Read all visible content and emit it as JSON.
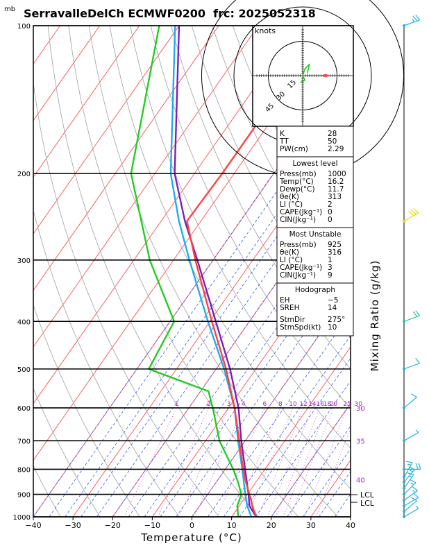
{
  "title": "SerravalleDelCh ECMWF0200  frc: 2025052318",
  "unit_mb": "mb",
  "xlabel": "Temperature (°C)",
  "mixing_ratio_label": "Mixing Ratio (g/kg)",
  "lcl_labels": [
    "LCL",
    "LCL"
  ],
  "hodograph": {
    "title": "knots",
    "ring_labels": [
      "15",
      "30",
      "45"
    ]
  },
  "indices": [
    {
      "label": "K",
      "value": "28"
    },
    {
      "label": "TT",
      "value": "50"
    },
    {
      "label": "PW(cm)",
      "value": "2.29"
    }
  ],
  "lowest_level": {
    "title": "Lowest level",
    "rows": [
      {
        "label": "Press(mb)",
        "value": "1000"
      },
      {
        "label": "Temp(°C)",
        "value": "16.2"
      },
      {
        "label": "Dewp(°C)",
        "value": "11.7"
      },
      {
        "label": "θe(K)",
        "value": "313"
      },
      {
        "label": "LI (°C)",
        "value": "2"
      },
      {
        "label": "CAPE(Jkg⁻¹)",
        "value": "0"
      },
      {
        "label": "CIN(Jkg⁻¹)",
        "value": "0"
      }
    ]
  },
  "most_unstable": {
    "title": "Most Unstable",
    "rows": [
      {
        "label": "Press(mb)",
        "value": "925"
      },
      {
        "label": "θe(K)",
        "value": "316"
      },
      {
        "label": "LI (°C)",
        "value": "1"
      },
      {
        "label": "CAPE(Jkg⁻¹)",
        "value": "3"
      },
      {
        "label": "CIN(Jkg⁻¹)",
        "value": "9"
      }
    ]
  },
  "hodograph_box": {
    "title": "Hodograph",
    "rows": [
      {
        "label": "EH",
        "value": "−5"
      },
      {
        "label": "SREH",
        "value": "14"
      },
      {
        "label": "StmDir",
        "value": "275°"
      },
      {
        "label": "StmSpd(kt)",
        "value": "10"
      }
    ]
  },
  "colors": {
    "temperature": "#ff4040",
    "dewpoint": "#22cc22",
    "parcel": "#7a1fb8",
    "virtual": "#22aaee",
    "isotherm": "#ff4b4b",
    "dry_adiabat": "#a8a8a8",
    "moist_adiabat": "#3355ff",
    "mixing_ratio": "#cc44cc",
    "theta_e_label": "#aa22cc",
    "wind": "#22b4e0",
    "wind_upper": "#e6d800",
    "wind_mid": "#22cc88"
  },
  "chart_data": {
    "type": "line",
    "chart_kind": "skew-T log-P sounding",
    "xlabel": "Temperature (°C)",
    "ylabel": "mb",
    "xlim": [
      -40,
      40
    ],
    "ylim": [
      1000,
      100
    ],
    "y_scale": "log (pressure)",
    "x_ticks": [
      -40,
      -30,
      -20,
      -10,
      0,
      10,
      20,
      30,
      40
    ],
    "pressure_ticks": [
      100,
      200,
      300,
      400,
      500,
      600,
      700,
      800,
      900,
      1000
    ],
    "mixing_ratio_labels": [
      "1",
      "2",
      "3",
      "4",
      "6",
      "8",
      "10",
      "12",
      "14",
      "16",
      "18",
      "20",
      "25",
      "30"
    ],
    "mixing_ratio_values": [
      1,
      2,
      3,
      4,
      6,
      8,
      10,
      12,
      14,
      16,
      18,
      20,
      25,
      30
    ],
    "theta_e_labels": [
      {
        "value": "30",
        "p": 600
      },
      {
        "value": "35",
        "p": 700
      },
      {
        "value": "40",
        "p": 840
      }
    ],
    "series": [
      {
        "name": "Temperature",
        "points": [
          [
            1000,
            16.2
          ],
          [
            950,
            13.3
          ],
          [
            925,
            12.0
          ],
          [
            900,
            10.5
          ],
          [
            850,
            7.5
          ],
          [
            800,
            4.5
          ],
          [
            700,
            -1.5
          ],
          [
            600,
            -8.5
          ],
          [
            500,
            -17.5
          ],
          [
            400,
            -29.5
          ],
          [
            300,
            -44.5
          ],
          [
            250,
            -53.5
          ],
          [
            200,
            -53.0
          ],
          [
            150,
            -53.0
          ],
          [
            100,
            -55.0
          ]
        ]
      },
      {
        "name": "Dewpoint",
        "points": [
          [
            1000,
            11.7
          ],
          [
            950,
            9.5
          ],
          [
            925,
            9.0
          ],
          [
            900,
            8.5
          ],
          [
            850,
            5.5
          ],
          [
            800,
            2.0
          ],
          [
            700,
            -6.5
          ],
          [
            600,
            -14.0
          ],
          [
            555,
            -18.0
          ],
          [
            500,
            -37.0
          ],
          [
            400,
            -39.0
          ],
          [
            300,
            -56.0
          ],
          [
            200,
            -76.0
          ],
          [
            100,
            -95.0
          ]
        ]
      },
      {
        "name": "Parcel",
        "points": [
          [
            1000,
            16.2
          ],
          [
            950,
            12.6
          ],
          [
            900,
            10.3
          ],
          [
            800,
            5.0
          ],
          [
            700,
            -1.0
          ],
          [
            600,
            -7.5
          ],
          [
            500,
            -16.5
          ],
          [
            400,
            -28.5
          ],
          [
            300,
            -44.0
          ],
          [
            250,
            -54.0
          ],
          [
            200,
            -65.0
          ],
          [
            100,
            -90.0
          ]
        ]
      },
      {
        "name": "Virtual",
        "points": [
          [
            1000,
            15.0
          ],
          [
            950,
            12.0
          ],
          [
            900,
            9.5
          ],
          [
            800,
            4.3
          ],
          [
            700,
            -1.8
          ],
          [
            600,
            -8.5
          ],
          [
            500,
            -18.0
          ],
          [
            400,
            -30.5
          ],
          [
            300,
            -46.0
          ],
          [
            250,
            -55.5
          ],
          [
            200,
            -66.0
          ],
          [
            100,
            -91.0
          ]
        ]
      }
    ],
    "hodograph_points_kt": [
      [
        -1,
        -3
      ],
      [
        1,
        -2
      ],
      [
        0,
        0
      ],
      [
        1,
        3
      ],
      [
        3,
        5
      ],
      [
        2,
        1
      ]
    ],
    "storm_motion_kt": [
      5,
      0
    ],
    "lcl_pressures": [
      912,
      930
    ],
    "wind_profile": [
      {
        "p": 100,
        "dir": 250,
        "speed": 25
      },
      {
        "p": 250,
        "dir": 240,
        "speed": 30
      },
      {
        "p": 400,
        "dir": 250,
        "speed": 20
      },
      {
        "p": 500,
        "dir": 250,
        "speed": 10
      },
      {
        "p": 600,
        "dir": 230,
        "speed": 10
      },
      {
        "p": 700,
        "dir": 240,
        "speed": 5
      },
      {
        "p": 800,
        "dir": 270,
        "speed": 20
      },
      {
        "p": 830,
        "dir": 210,
        "speed": 15
      },
      {
        "p": 850,
        "dir": 220,
        "speed": 15
      },
      {
        "p": 875,
        "dir": 215,
        "speed": 15
      },
      {
        "p": 900,
        "dir": 225,
        "speed": 15
      },
      {
        "p": 925,
        "dir": 235,
        "speed": 15
      },
      {
        "p": 950,
        "dir": 240,
        "speed": 10
      },
      {
        "p": 975,
        "dir": 230,
        "speed": 10
      },
      {
        "p": 1000,
        "dir": 240,
        "speed": 5
      }
    ]
  }
}
